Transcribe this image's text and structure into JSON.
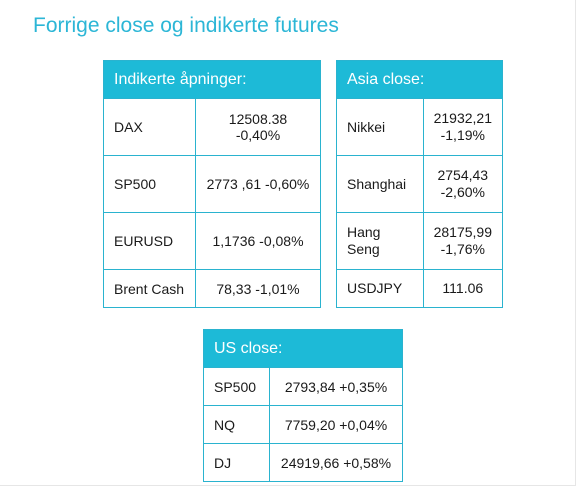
{
  "title": "Forrige close og indikerte futures",
  "indikerte": {
    "header": "Indikerte åpninger:",
    "rows": [
      {
        "name": "DAX",
        "value": "12508.38 -0,40%"
      },
      {
        "name": "SP500",
        "value": "2773 ,61 -0,60%"
      },
      {
        "name": "EURUSD",
        "value": "1,1736 -0,08%"
      },
      {
        "name": "Brent Cash",
        "value": "78,33 -1,01%"
      }
    ]
  },
  "asia": {
    "header": "Asia close:",
    "rows": [
      {
        "name": "Nikkei",
        "value_line1": "21932,21",
        "value_line2": "-1,19%"
      },
      {
        "name": "Shanghai",
        "value_line1": "2754,43",
        "value_line2": "-2,60%"
      },
      {
        "name": "Hang Seng",
        "value_line1": "28175,99",
        "value_line2": "-1,76%"
      },
      {
        "name": "USDJPY",
        "value_line1": "111.06",
        "value_line2": ""
      }
    ]
  },
  "us": {
    "header": "US close:",
    "rows": [
      {
        "name": "SP500",
        "value": "2793,84 +0,35%"
      },
      {
        "name": "NQ",
        "value": "7759,20 +0,04%"
      },
      {
        "name": "DJ",
        "value": "24919,66 +0,58%"
      }
    ]
  },
  "colors": {
    "title": "#2cb6d6",
    "header_bg": "#1dbad7",
    "border": "#2ab3cf"
  }
}
